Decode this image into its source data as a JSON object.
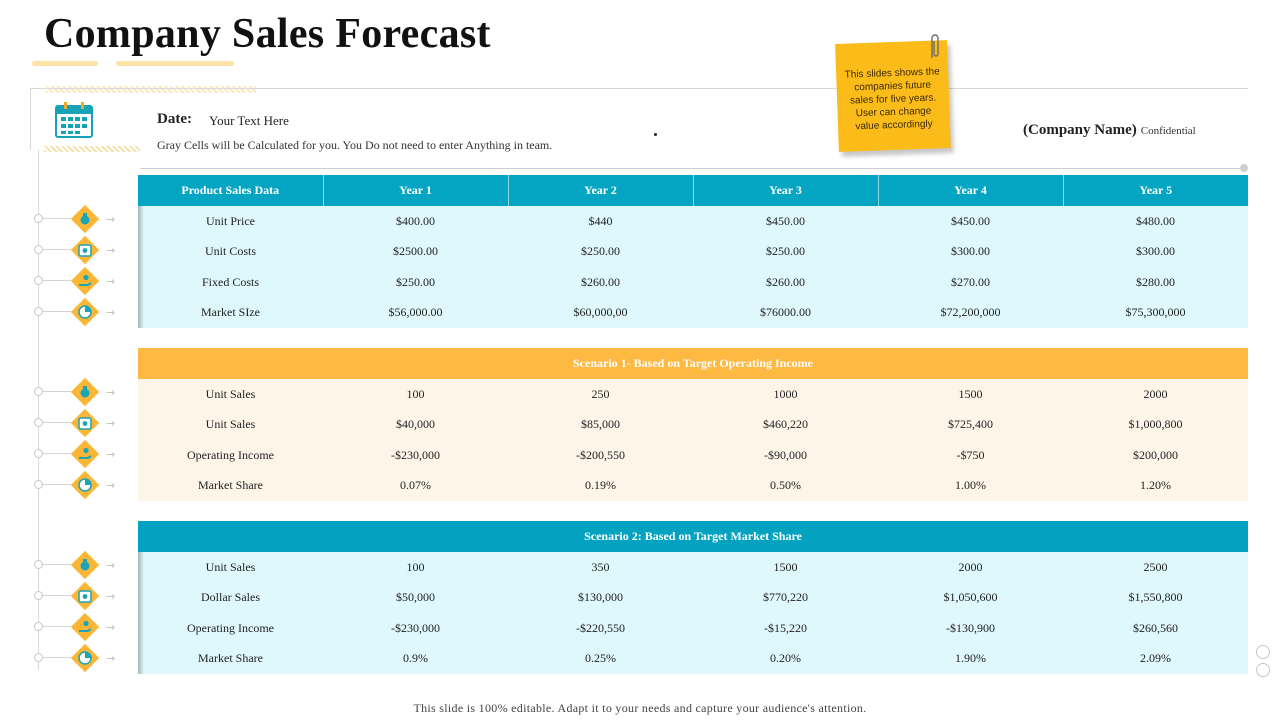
{
  "title": "Company Sales Forecast",
  "date_label": "Date:",
  "date_value": "Your Text Here",
  "note": "Gray Cells will be Calculated for you. You Do not need to enter Anything in team.",
  "company_name": "(Company Name)",
  "confidential": "Confidential",
  "sticky_note": "This slides shows the companies future sales for five years. User can change value accordingly",
  "columns": [
    "Product Sales Data",
    "Year 1",
    "Year 2",
    "Year 3",
    "Year 4",
    "Year 5"
  ],
  "table1": {
    "rows": [
      {
        "label": "Unit Price",
        "values": [
          "$400.00",
          "$440",
          "$450.00",
          "$450.00",
          "$480.00"
        ]
      },
      {
        "label": "Unit Costs",
        "values": [
          "$2500.00",
          "$250.00",
          "$250.00",
          "$300.00",
          "$300.00"
        ]
      },
      {
        "label": "Fixed Costs",
        "values": [
          "$250.00",
          "$260.00",
          "$260.00",
          "$270.00",
          "$280.00"
        ]
      },
      {
        "label": "Market SIze",
        "values": [
          "$56,000.00",
          "$60,000,00",
          "$76000.00",
          "$72,200,000",
          "$75,300,000"
        ]
      }
    ]
  },
  "table2": {
    "heading": "Scenario 1- Based on Target Operating Income",
    "rows": [
      {
        "label": "Unit Sales",
        "values": [
          "100",
          "250",
          "1000",
          "1500",
          "2000"
        ]
      },
      {
        "label": "Unit Sales",
        "values": [
          "$40,000",
          "$85,000",
          "$460,220",
          "$725,400",
          "$1,000,800"
        ]
      },
      {
        "label": "Operating Income",
        "values": [
          "-$230,000",
          "-$200,550",
          "-$90,000",
          "-$750",
          "$200,000"
        ]
      },
      {
        "label": "Market Share",
        "values": [
          "0.07%",
          "0.19%",
          "0.50%",
          "1.00%",
          "1.20%"
        ]
      }
    ]
  },
  "table3": {
    "heading": "Scenario 2: Based on Target Market Share",
    "rows": [
      {
        "label": "Unit Sales",
        "values": [
          "100",
          "350",
          "1500",
          "2000",
          "2500"
        ]
      },
      {
        "label": "Dollar Sales",
        "values": [
          "$50,000",
          "$130,000",
          "$770,220",
          "$1,050,600",
          "$1,550,800"
        ]
      },
      {
        "label": "Operating Income",
        "values": [
          "-$230,000",
          "-$220,550",
          "-$15,220",
          "-$130,900",
          "$260,560"
        ]
      },
      {
        "label": "Market Share",
        "values": [
          "0.9%",
          "0.25%",
          "0.20%",
          "1.90%",
          "2.09%"
        ]
      }
    ]
  },
  "row_icons": [
    "money-bag-icon",
    "money-bills-icon",
    "hand-coin-icon",
    "pie-chart-icon"
  ],
  "colors": {
    "teal": "#04a5c3",
    "orange": "#fdb941",
    "light_teal": "#dff8fc",
    "cream": "#fdf6e8",
    "sticky": "#fbbc1a"
  },
  "footer": "This slide is 100% editable.  Adapt it to your needs and capture your audience's  attention."
}
